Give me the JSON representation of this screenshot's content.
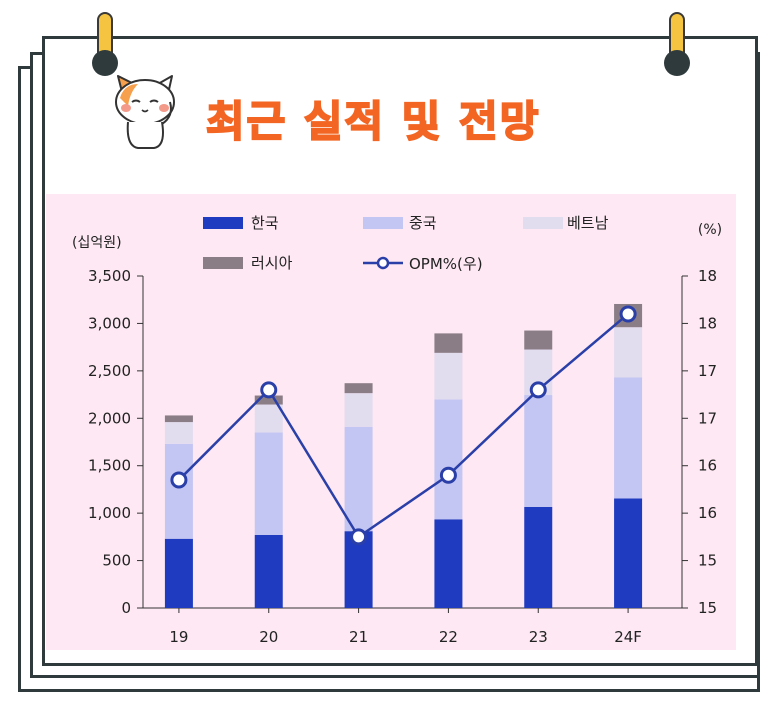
{
  "title": "최근 실적 및 전망",
  "colors": {
    "korea": "#1f3bbf",
    "china": "#c3c6f2",
    "vietnam": "#e2dcef",
    "russia": "#8b7d86",
    "opm": "#2a3fa8",
    "title": "#f26522",
    "background": "#fde8f3"
  },
  "chart_data": {
    "type": "bar",
    "stacked": true,
    "categories": [
      "19",
      "20",
      "21",
      "22",
      "23",
      "24F"
    ],
    "series": [
      {
        "name": "한국",
        "values": [
          730,
          770,
          810,
          935,
          1065,
          1155
        ]
      },
      {
        "name": "중국",
        "values": [
          1000,
          1080,
          1100,
          1265,
          1180,
          1275
        ]
      },
      {
        "name": "베트남",
        "values": [
          230,
          295,
          355,
          490,
          480,
          530
        ]
      },
      {
        "name": "러시아",
        "values": [
          70,
          95,
          105,
          205,
          200,
          245
        ]
      }
    ],
    "line_series": {
      "name": "OPM%(우)",
      "values": [
        16.35,
        17.3,
        15.75,
        16.4,
        17.3,
        18.1
      ]
    },
    "ylabel": "(십억원)",
    "y2label": "(%)",
    "ylim": [
      0,
      3500
    ],
    "y2lim": [
      15,
      18.5
    ],
    "yticks": [
      "0",
      "500",
      "1,000",
      "1,500",
      "2,000",
      "2,500",
      "3,000",
      "3,500"
    ],
    "y2ticks": [
      "15",
      "15",
      "16",
      "16",
      "17",
      "17",
      "18",
      "18"
    ],
    "legend_position": "top"
  }
}
